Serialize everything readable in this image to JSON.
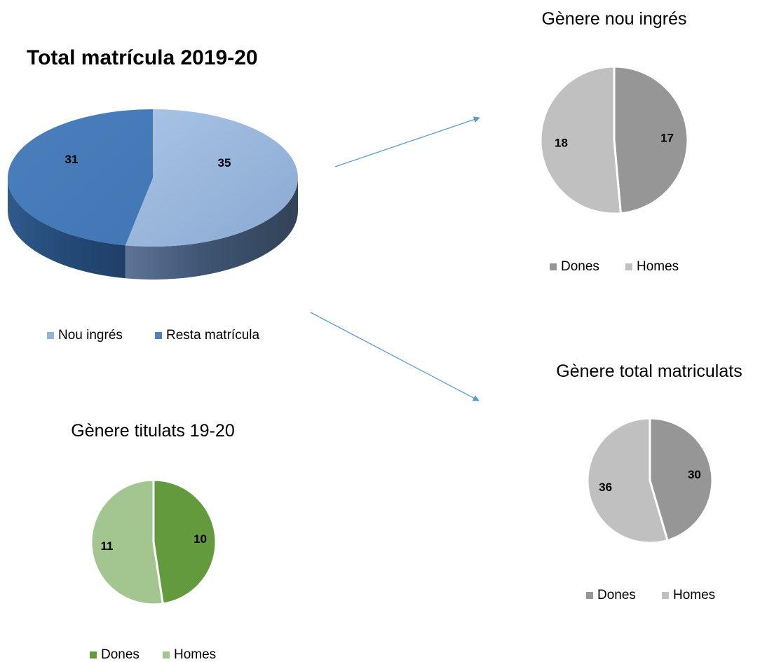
{
  "chart_data": [
    {
      "type": "pie",
      "style": "3d",
      "title": "Total matrícula 2019-20",
      "categories": [
        "Nou ingrés",
        "Resta matrícula"
      ],
      "values": [
        35,
        31
      ],
      "colors": [
        "#95b3d7",
        "#4f81bd"
      ],
      "legend_position": "bottom"
    },
    {
      "type": "pie",
      "title": "Gènere nou ingrés",
      "categories": [
        "Dones",
        "Homes"
      ],
      "values": [
        17,
        18
      ],
      "colors": [
        "#969696",
        "#c0c0c0"
      ],
      "legend_position": "bottom"
    },
    {
      "type": "pie",
      "title": "Gènere total matriculats",
      "categories": [
        "Dones",
        "Homes"
      ],
      "values": [
        30,
        36
      ],
      "colors": [
        "#969696",
        "#c0c0c0"
      ],
      "legend_position": "bottom"
    },
    {
      "type": "pie",
      "title": "Gènere titulats 19-20",
      "categories": [
        "Dones",
        "Homes"
      ],
      "values": [
        10,
        11
      ],
      "colors": [
        "#629a3d",
        "#a3c590"
      ],
      "legend_position": "bottom"
    }
  ],
  "connector_color": "#5b9bd5"
}
